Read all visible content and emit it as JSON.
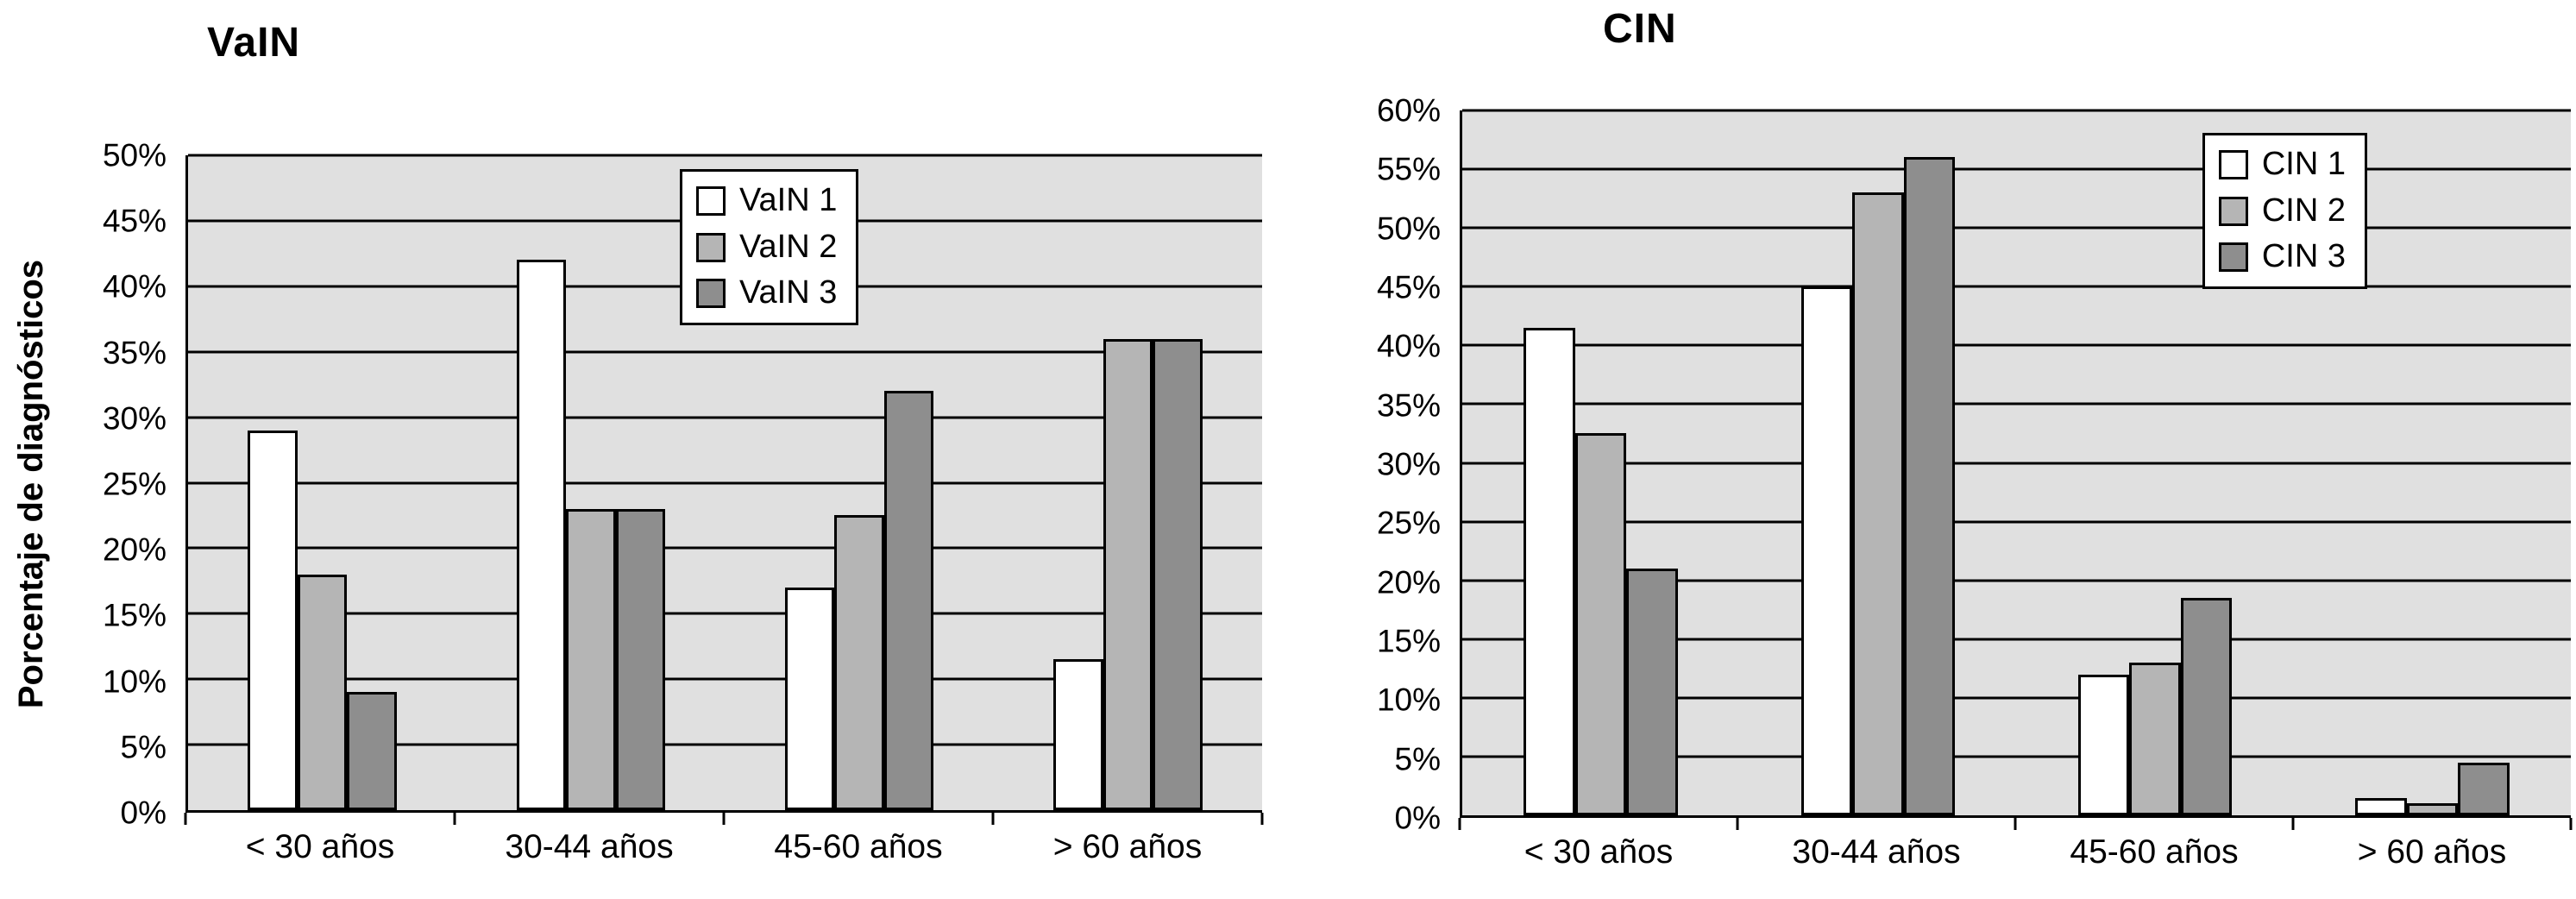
{
  "figure": {
    "background": "#ffffff",
    "plot_background": "#e0e0e0",
    "grid_color": "#000000"
  },
  "chart_data": [
    {
      "type": "bar",
      "title": "VaIN",
      "ylabel": "Porcentaje de diagnósticos",
      "xlabel": "",
      "categories": [
        "< 30 años",
        "30-44 años",
        "45-60 años",
        "> 60 años"
      ],
      "series": [
        {
          "name": "VaIN 1",
          "color": "#ffffff",
          "values": [
            29,
            42,
            17,
            11.5
          ]
        },
        {
          "name": "VaIN 2",
          "color": "#b5b5b5",
          "values": [
            18,
            23,
            22.5,
            36
          ]
        },
        {
          "name": "VaIN 3",
          "color": "#8e8e8e",
          "values": [
            9,
            23,
            32,
            36
          ]
        }
      ],
      "ylim": [
        0,
        50
      ],
      "yticks": [
        "0%",
        "5%",
        "10%",
        "15%",
        "20%",
        "25%",
        "30%",
        "35%",
        "40%",
        "45%",
        "50%"
      ],
      "grid": true,
      "legend_position": "top-right-inside"
    },
    {
      "type": "bar",
      "title": "CIN",
      "xlabel": "",
      "categories": [
        "< 30 años",
        "30-44 años",
        "45-60 años",
        "> 60 años"
      ],
      "series": [
        {
          "name": "CIN 1",
          "color": "#ffffff",
          "values": [
            41.5,
            45,
            12,
            1.5
          ]
        },
        {
          "name": "CIN 2",
          "color": "#b5b5b5",
          "values": [
            32.5,
            53,
            13,
            1
          ]
        },
        {
          "name": "CIN 3",
          "color": "#8e8e8e",
          "values": [
            21,
            56,
            18.5,
            4.5
          ]
        }
      ],
      "ylim": [
        0,
        60
      ],
      "yticks": [
        "0%",
        "5%",
        "10%",
        "15%",
        "20%",
        "25%",
        "30%",
        "35%",
        "40%",
        "45%",
        "50%",
        "55%",
        "60%"
      ],
      "grid": true,
      "legend_position": "top-right-inside"
    }
  ]
}
